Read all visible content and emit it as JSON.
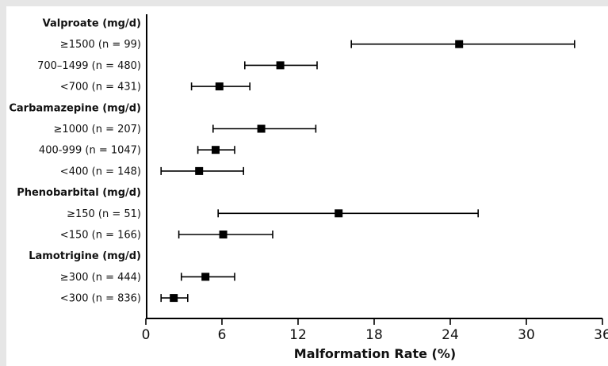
{
  "chart_data": {
    "type": "forest",
    "xlabel": "Malformation Rate (%)",
    "xlim": [
      0,
      36
    ],
    "xticks": [
      "0",
      "6",
      "12",
      "18",
      "24",
      "30",
      "36"
    ],
    "rows": [
      {
        "kind": "group",
        "label": "Valproate (mg/d)"
      },
      {
        "kind": "item",
        "label": "≥1500 (n = 99)",
        "estimate": 24.7,
        "lower": 16.2,
        "upper": 33.8
      },
      {
        "kind": "item",
        "label": "700–1499 (n = 480)",
        "estimate": 10.6,
        "lower": 7.8,
        "upper": 13.5
      },
      {
        "kind": "item",
        "label": "<700 (n = 431)",
        "estimate": 5.8,
        "lower": 3.6,
        "upper": 8.2
      },
      {
        "kind": "group",
        "label": "Carbamazepine (mg/d)"
      },
      {
        "kind": "item",
        "label": "≥1000 (n = 207)",
        "estimate": 9.1,
        "lower": 5.3,
        "upper": 13.4
      },
      {
        "kind": "item",
        "label": "400-999 (n = 1047)",
        "estimate": 5.5,
        "lower": 4.1,
        "upper": 7.0
      },
      {
        "kind": "item",
        "label": "<400 (n = 148)",
        "estimate": 4.2,
        "lower": 1.2,
        "upper": 7.7
      },
      {
        "kind": "group",
        "label": "Phenobarbital (mg/d)"
      },
      {
        "kind": "item",
        "label": "≥150 (n = 51)",
        "estimate": 15.2,
        "lower": 5.7,
        "upper": 26.2
      },
      {
        "kind": "item",
        "label": "<150 (n = 166)",
        "estimate": 6.1,
        "lower": 2.6,
        "upper": 10.0
      },
      {
        "kind": "group",
        "label": "Lamotrigine (mg/d)"
      },
      {
        "kind": "item",
        "label": "≥300 (n = 444)",
        "estimate": 4.7,
        "lower": 2.8,
        "upper": 7.0
      },
      {
        "kind": "item",
        "label": "<300 (n = 836)",
        "estimate": 2.2,
        "lower": 1.2,
        "upper": 3.3
      }
    ]
  }
}
